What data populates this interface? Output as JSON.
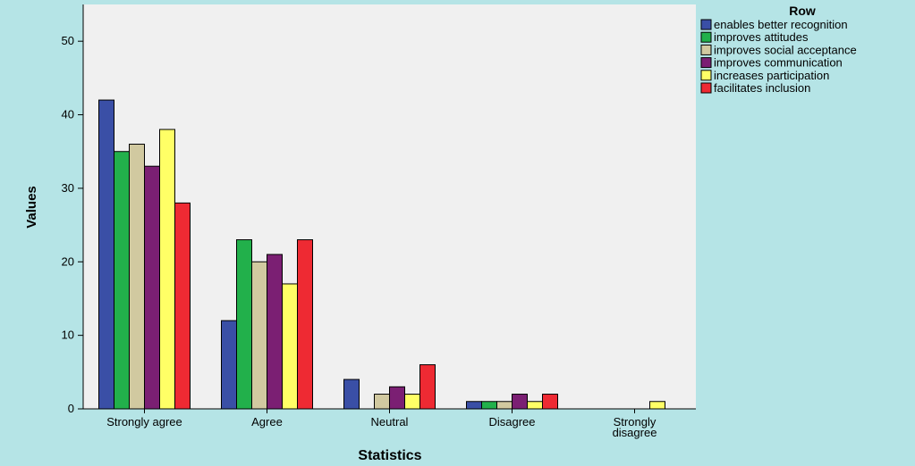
{
  "chart_data": {
    "type": "bar",
    "xlabel": "Statistics",
    "ylabel": "Values",
    "ylim": [
      0,
      55
    ],
    "yticks": [
      0,
      10,
      20,
      30,
      40,
      50
    ],
    "grid": false,
    "legend_title": "Row",
    "legend_position": "right",
    "categories": [
      "Strongly agree",
      "Agree",
      "Neutral",
      "Disagree",
      "Strongly disagree"
    ],
    "series": [
      {
        "name": "enables better recognition",
        "color": "#3a4fa6",
        "values": [
          42,
          12,
          4,
          1,
          0
        ]
      },
      {
        "name": "improves attitudes",
        "color": "#22b04b",
        "values": [
          35,
          23,
          0,
          1,
          0
        ]
      },
      {
        "name": "improves social acceptance",
        "color": "#d1c9a0",
        "values": [
          36,
          20,
          2,
          1,
          0
        ]
      },
      {
        "name": "improves communication",
        "color": "#7b1f73",
        "values": [
          33,
          21,
          3,
          2,
          0
        ]
      },
      {
        "name": "increases participation",
        "color": "#ffff66",
        "values": [
          38,
          17,
          2,
          1,
          1
        ]
      },
      {
        "name": "facilitates inclusion",
        "color": "#ee2a33",
        "values": [
          28,
          23,
          6,
          2,
          0
        ]
      }
    ]
  },
  "colors": {
    "outer_background": "#b5e4e6",
    "plot_background": "#f0f0f0"
  }
}
